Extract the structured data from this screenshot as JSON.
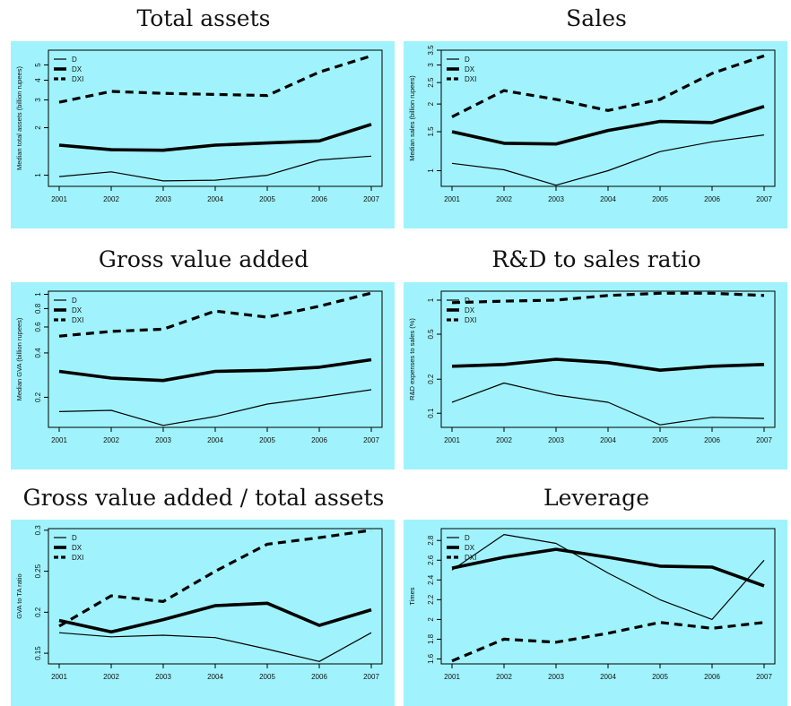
{
  "chart_data": [
    {
      "type": "line",
      "title": "Total assets",
      "ylabel": "Median total assets (billion rupees)",
      "x": [
        2001,
        2002,
        2003,
        2004,
        2005,
        2006,
        2007
      ],
      "log_scale": true,
      "ylim": [
        0.85,
        6.2
      ],
      "yticks": [
        1,
        2,
        3,
        4,
        5
      ],
      "series": [
        {
          "name": "D",
          "values": [
            0.98,
            1.05,
            0.92,
            0.93,
            1.0,
            1.25,
            1.32
          ]
        },
        {
          "name": "DX",
          "values": [
            1.55,
            1.45,
            1.44,
            1.55,
            1.6,
            1.65,
            2.1
          ]
        },
        {
          "name": "DXI",
          "values": [
            2.9,
            3.4,
            3.3,
            3.25,
            3.2,
            4.5,
            5.7
          ]
        }
      ],
      "legend": "top-left",
      "background": "#a0f3fc"
    },
    {
      "type": "line",
      "title": "Sales",
      "ylabel": "Median sales (billion rupees)",
      "x": [
        2001,
        2002,
        2003,
        2004,
        2005,
        2006,
        2007
      ],
      "log_scale": true,
      "ylim": [
        0.85,
        3.5
      ],
      "yticks": [
        1.0,
        1.5,
        2.0,
        2.5,
        3.0,
        3.5
      ],
      "series": [
        {
          "name": "D",
          "values": [
            1.08,
            1.01,
            0.86,
            1.0,
            1.22,
            1.35,
            1.45
          ]
        },
        {
          "name": "DX",
          "values": [
            1.5,
            1.33,
            1.32,
            1.52,
            1.67,
            1.65,
            1.95
          ]
        },
        {
          "name": "DXI",
          "values": [
            1.75,
            2.3,
            2.1,
            1.87,
            2.1,
            2.75,
            3.3
          ]
        }
      ],
      "legend": "top-left",
      "background": "#a0f3fc"
    },
    {
      "type": "line",
      "title": "Gross value added",
      "ylabel": "Median GVA (billion rupees)",
      "x": [
        2001,
        2002,
        2003,
        2004,
        2005,
        2006,
        2007
      ],
      "log_scale": true,
      "ylim": [
        0.125,
        1.05
      ],
      "yticks": [
        0.2,
        0.4,
        0.6,
        0.8,
        1.0
      ],
      "series": [
        {
          "name": "D",
          "values": [
            0.16,
            0.163,
            0.129,
            0.148,
            0.18,
            0.2,
            0.225
          ]
        },
        {
          "name": "DX",
          "values": [
            0.3,
            0.27,
            0.26,
            0.3,
            0.305,
            0.32,
            0.36
          ]
        },
        {
          "name": "DXI",
          "values": [
            0.52,
            0.56,
            0.58,
            0.77,
            0.7,
            0.83,
            1.02
          ]
        }
      ],
      "legend": "top-left",
      "background": "#a0f3fc"
    },
    {
      "type": "line",
      "title": "R&D to sales ratio",
      "ylabel": "R&D expenses to sales (%)",
      "x": [
        2001,
        2002,
        2003,
        2004,
        2005,
        2006,
        2007
      ],
      "log_scale": true,
      "ylim": [
        0.075,
        1.2
      ],
      "yticks": [
        0.1,
        0.2,
        0.5,
        1.0
      ],
      "series": [
        {
          "name": "D",
          "values": [
            0.125,
            0.185,
            0.145,
            0.125,
            0.079,
            0.092,
            0.09
          ]
        },
        {
          "name": "DX",
          "values": [
            0.26,
            0.27,
            0.3,
            0.28,
            0.24,
            0.26,
            0.27
          ]
        },
        {
          "name": "DXI",
          "values": [
            0.95,
            0.98,
            1.0,
            1.1,
            1.15,
            1.15,
            1.1
          ]
        }
      ],
      "legend": "top-left",
      "background": "#a0f3fc"
    },
    {
      "type": "line",
      "title": "Gross value added / total assets",
      "ylabel": "GVA to TA ratio",
      "x": [
        2001,
        2002,
        2003,
        2004,
        2005,
        2006,
        2007
      ],
      "log_scale": false,
      "ylim": [
        0.137,
        0.302
      ],
      "yticks": [
        0.15,
        0.2,
        0.25,
        0.3
      ],
      "series": [
        {
          "name": "D",
          "values": [
            0.175,
            0.17,
            0.172,
            0.169,
            0.155,
            0.14,
            0.175
          ]
        },
        {
          "name": "DX",
          "values": [
            0.19,
            0.176,
            0.191,
            0.208,
            0.211,
            0.184,
            0.203
          ]
        },
        {
          "name": "DXI",
          "values": [
            0.183,
            0.22,
            0.213,
            0.25,
            0.283,
            0.291,
            0.3
          ]
        }
      ],
      "legend": "top-left",
      "background": "#a0f3fc"
    },
    {
      "type": "line",
      "title": "Leverage",
      "ylabel": "Times",
      "x": [
        2001,
        2002,
        2003,
        2004,
        2005,
        2006,
        2007
      ],
      "log_scale": false,
      "ylim": [
        1.55,
        2.92
      ],
      "yticks": [
        1.6,
        1.8,
        2.0,
        2.2,
        2.4,
        2.6,
        2.8
      ],
      "series": [
        {
          "name": "D",
          "values": [
            2.5,
            2.86,
            2.77,
            2.47,
            2.2,
            2.0,
            2.6
          ]
        },
        {
          "name": "DX",
          "values": [
            2.52,
            2.63,
            2.71,
            2.63,
            2.54,
            2.53,
            2.34
          ]
        },
        {
          "name": "DXI",
          "values": [
            1.58,
            1.8,
            1.77,
            1.86,
            1.97,
            1.91,
            1.97
          ]
        }
      ],
      "legend": "top-left",
      "background": "#a0f3fc"
    }
  ]
}
